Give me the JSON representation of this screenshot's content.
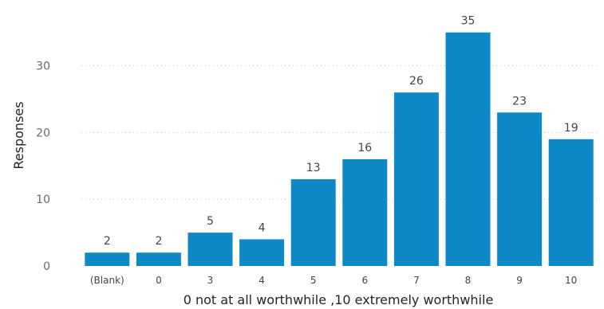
{
  "chart_data": {
    "type": "bar",
    "title": "",
    "categories": [
      "(Blank)",
      "0",
      "3",
      "4",
      "5",
      "6",
      "7",
      "8",
      "9",
      "10"
    ],
    "values": [
      2,
      2,
      5,
      4,
      13,
      16,
      26,
      35,
      23,
      19
    ],
    "xlabel": "0 not at all worthwhile ,10 extremely worthwhile",
    "ylabel": "Responses",
    "ylim": [
      0,
      35
    ],
    "yticks": [
      0,
      10,
      20,
      30
    ],
    "grid": true,
    "data_labels": true,
    "bar_color": "#0f88c8",
    "gridline_color": "#c8c8c8"
  }
}
